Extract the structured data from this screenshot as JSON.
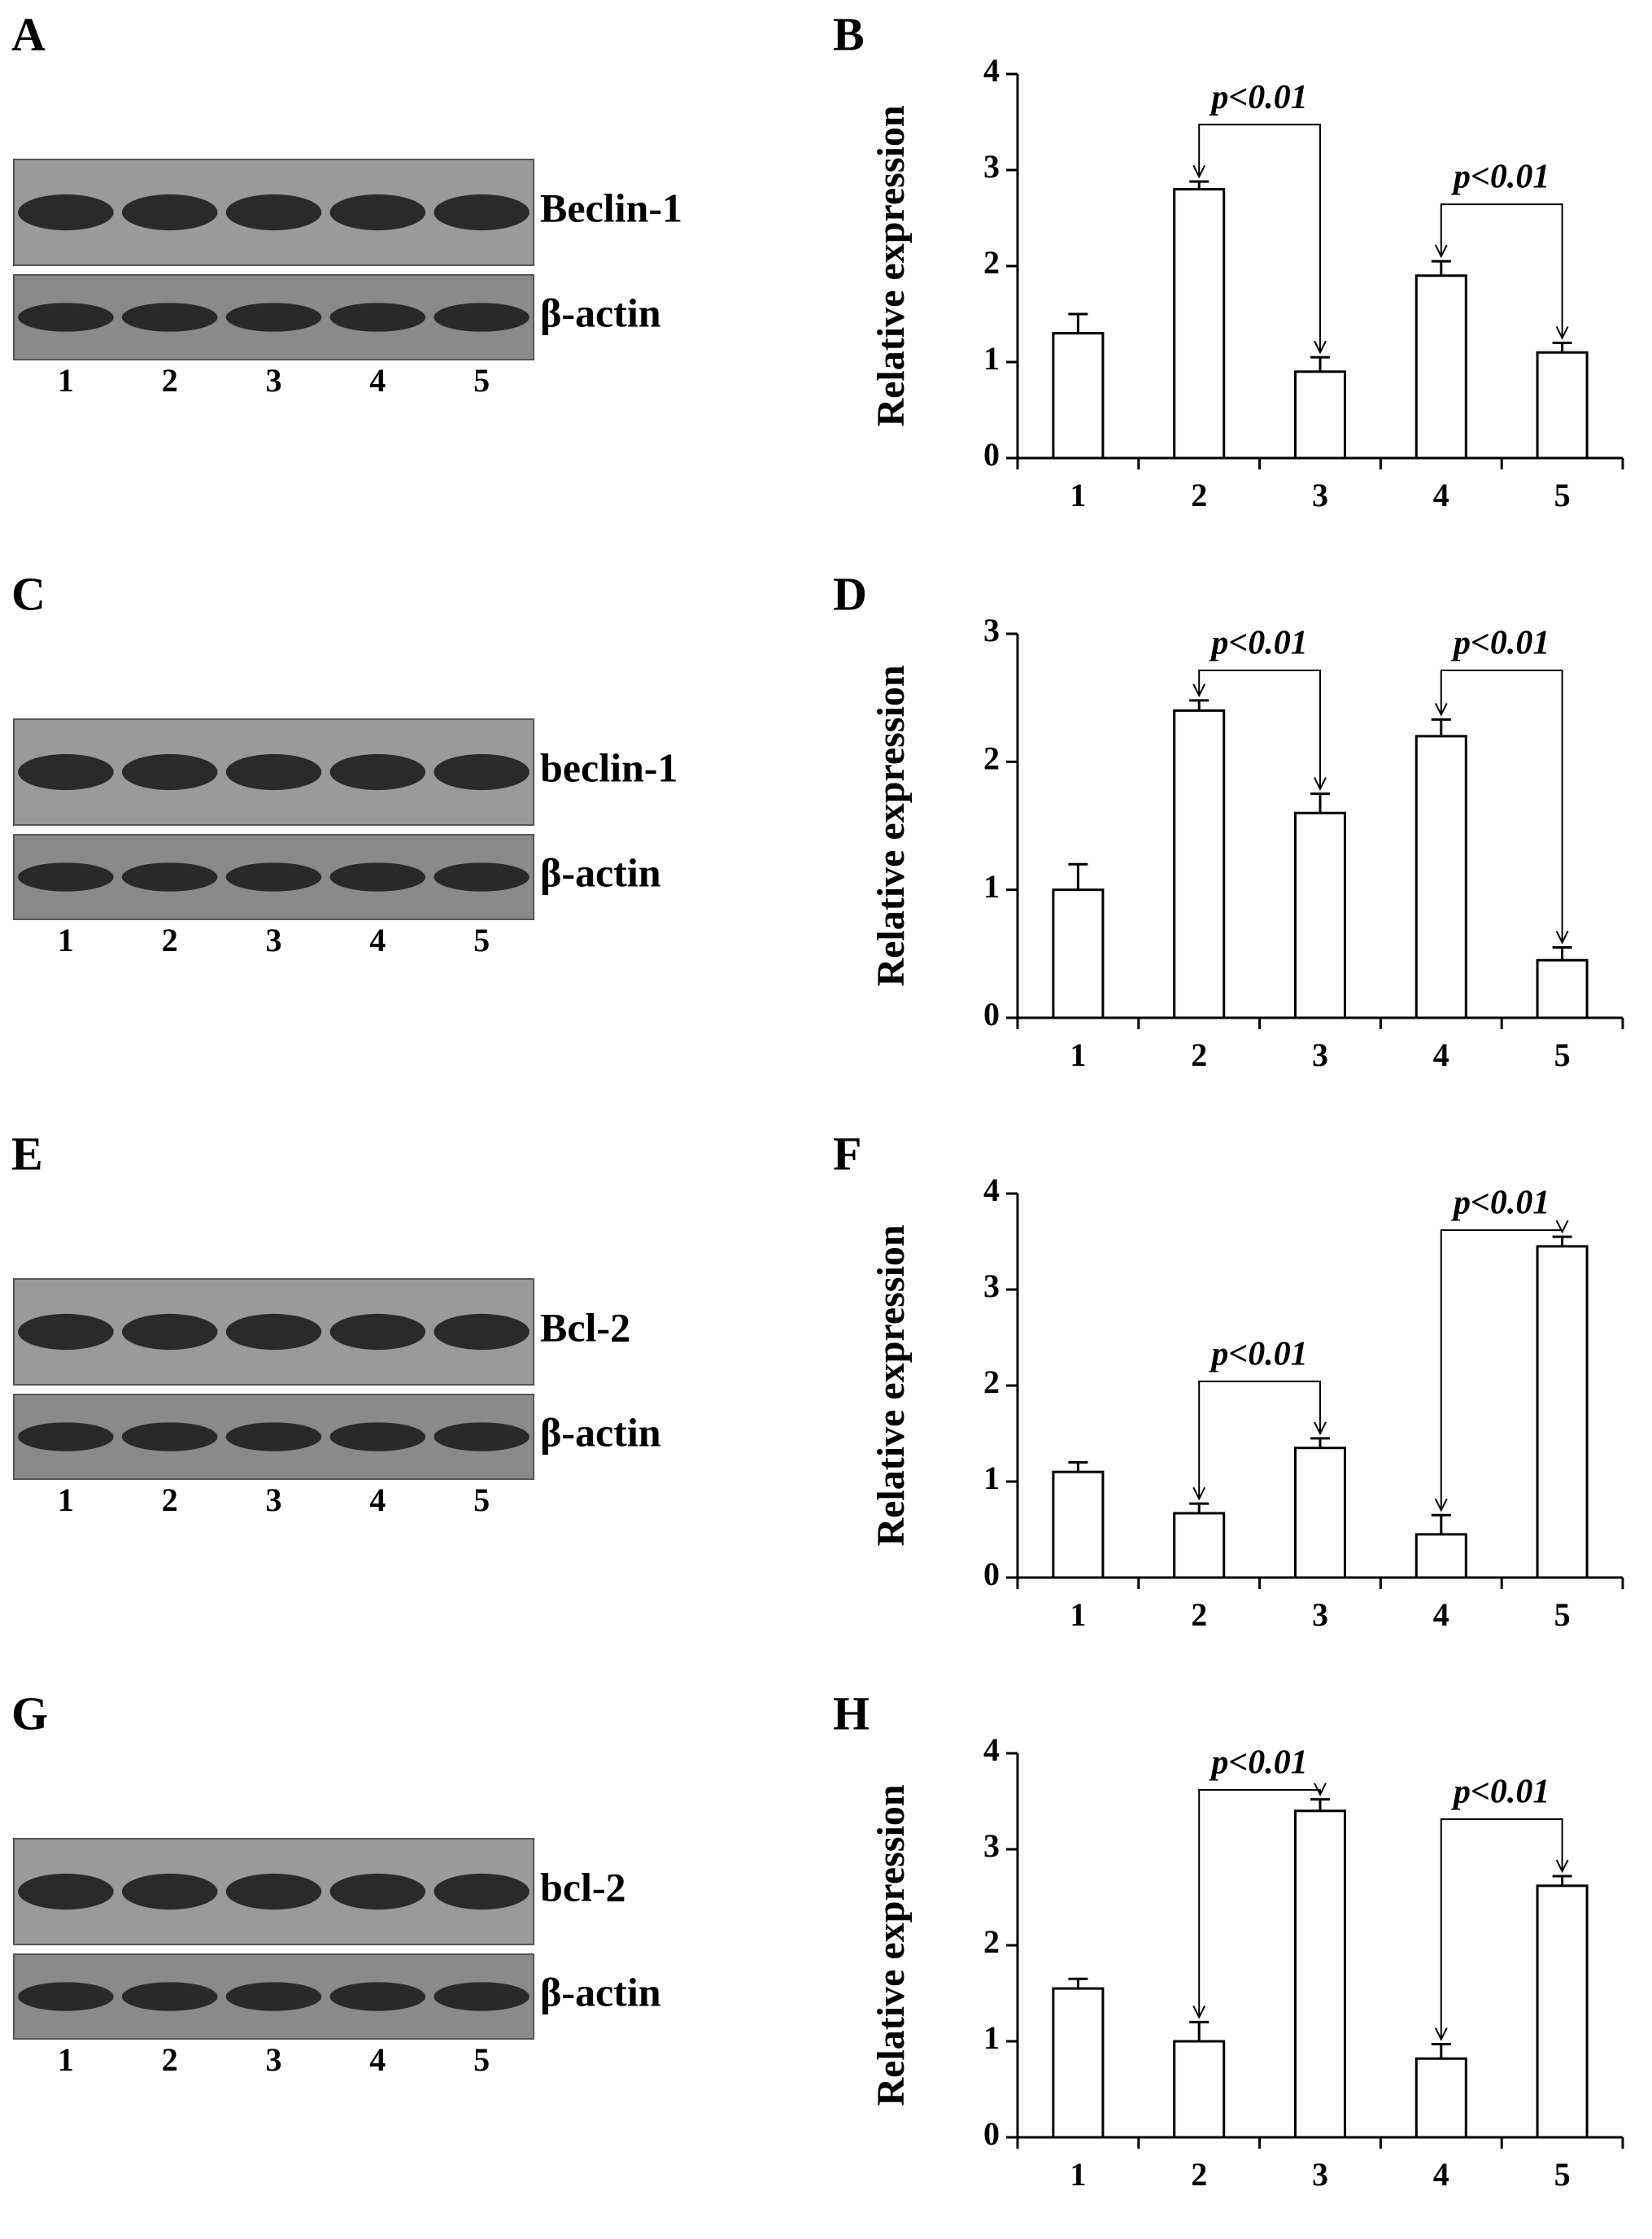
{
  "blots": [
    {
      "letter": "A",
      "labels": [
        "Beclin-1",
        "β-actin"
      ],
      "lanes": [
        "1",
        "2",
        "3",
        "4",
        "5"
      ]
    },
    {
      "letter": "C",
      "labels": [
        "beclin-1",
        "β-actin"
      ],
      "lanes": [
        "1",
        "2",
        "3",
        "4",
        "5"
      ]
    },
    {
      "letter": "E",
      "labels": [
        "Bcl-2",
        "β-actin"
      ],
      "lanes": [
        "1",
        "2",
        "3",
        "4",
        "5"
      ]
    },
    {
      "letter": "G",
      "labels": [
        "bcl-2",
        "β-actin"
      ],
      "lanes": [
        "1",
        "2",
        "3",
        "4",
        "5"
      ]
    }
  ],
  "chart_data": [
    {
      "type": "bar",
      "title": "B",
      "y_label": "Relative expression",
      "categories": [
        "1",
        "2",
        "3",
        "4",
        "5"
      ],
      "values": [
        1.3,
        2.8,
        0.9,
        1.9,
        1.1
      ],
      "errors": [
        0.2,
        0.08,
        0.15,
        0.15,
        0.1
      ],
      "color": "#ffffff",
      "ylim": [
        0,
        4
      ],
      "yticks": [
        0,
        1,
        2,
        3,
        4
      ],
      "annotations": [
        {
          "text": "p<0.01",
          "between": [
            "2",
            "3"
          ]
        },
        {
          "text": "p<0.01",
          "between": [
            "4",
            "5"
          ]
        }
      ]
    },
    {
      "type": "bar",
      "title": "D",
      "y_label": "Relative expression",
      "categories": [
        "1",
        "2",
        "3",
        "4",
        "5"
      ],
      "values": [
        1.0,
        2.4,
        1.6,
        2.2,
        0.45
      ],
      "errors": [
        0.2,
        0.08,
        0.15,
        0.13,
        0.1
      ],
      "color": "#ffffff",
      "ylim": [
        0,
        3
      ],
      "yticks": [
        0,
        1,
        2,
        3
      ],
      "annotations": [
        {
          "text": "p<0.01",
          "between": [
            "2",
            "3"
          ]
        },
        {
          "text": "p<0.01",
          "between": [
            "4",
            "5"
          ]
        }
      ]
    },
    {
      "type": "bar",
      "title": "F",
      "y_label": "Relative expression",
      "categories": [
        "1",
        "2",
        "3",
        "4",
        "5"
      ],
      "values": [
        1.1,
        0.67,
        1.35,
        0.45,
        3.45
      ],
      "errors": [
        0.1,
        0.1,
        0.1,
        0.2,
        0.1
      ],
      "color": "#ffffff",
      "ylim": [
        0,
        4
      ],
      "yticks": [
        0,
        1,
        2,
        3,
        4
      ],
      "annotations": [
        {
          "text": "p<0.01",
          "between": [
            "2",
            "3"
          ]
        },
        {
          "text": "p<0.01",
          "between": [
            "4",
            "5"
          ]
        }
      ]
    },
    {
      "type": "bar",
      "title": "H",
      "y_label": "Relative expression",
      "categories": [
        "1",
        "2",
        "3",
        "4",
        "5"
      ],
      "values": [
        1.55,
        1.0,
        3.4,
        0.82,
        2.62
      ],
      "errors": [
        0.1,
        0.2,
        0.12,
        0.15,
        0.1
      ],
      "color": "#ffffff",
      "ylim": [
        0,
        4
      ],
      "yticks": [
        0,
        1,
        2,
        3,
        4
      ],
      "annotations": [
        {
          "text": "p<0.01",
          "between": [
            "2",
            "3"
          ]
        },
        {
          "text": "p<0.01",
          "between": [
            "4",
            "5"
          ]
        }
      ]
    }
  ]
}
